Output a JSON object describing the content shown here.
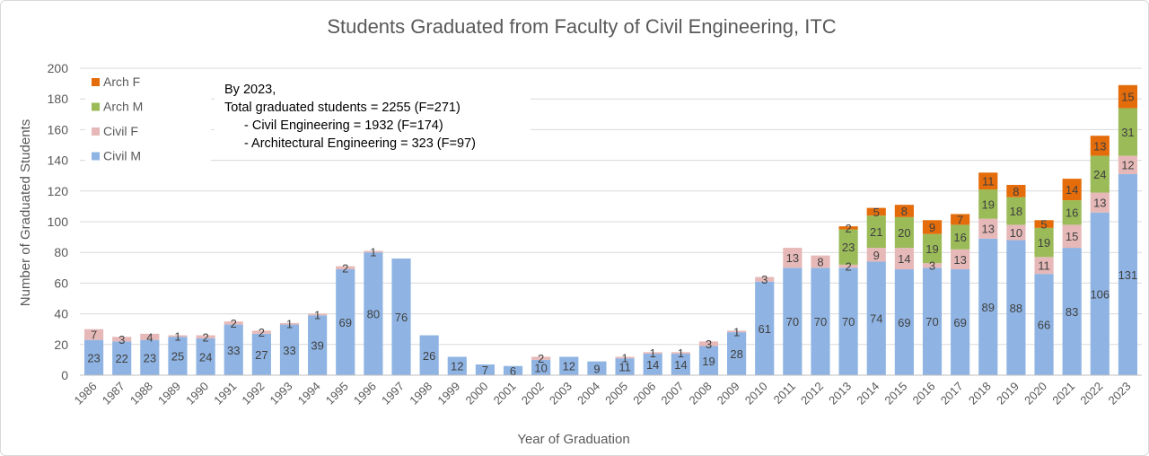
{
  "chart_data": {
    "type": "bar",
    "stacked": true,
    "title": "Students Graduated from Faculty of Civil Engineering, ITC",
    "xlabel": "Year of Graduation",
    "ylabel": "Number of Graduated Students",
    "ylim": [
      0,
      200
    ],
    "yticks": [
      0,
      20,
      40,
      60,
      80,
      100,
      120,
      140,
      160,
      180,
      200
    ],
    "grid": true,
    "legend_position": "top-left",
    "categories": [
      "1986",
      "1987",
      "1988",
      "1989",
      "1990",
      "1991",
      "1992",
      "1993",
      "1994",
      "1995",
      "1996",
      "1997",
      "1998",
      "1999",
      "2000",
      "2001",
      "2002",
      "2003",
      "2004",
      "2005",
      "2006",
      "2007",
      "2008",
      "2009",
      "2010",
      "2011",
      "2012",
      "2013",
      "2014",
      "2015",
      "2016",
      "2017",
      "2018",
      "2019",
      "2020",
      "2021",
      "2022",
      "2023"
    ],
    "series": [
      {
        "name": "Civil M",
        "color": "#8fb4e3",
        "values": [
          23,
          22,
          23,
          25,
          24,
          33,
          27,
          33,
          39,
          69,
          80,
          76,
          26,
          12,
          7,
          6,
          10,
          12,
          9,
          11,
          14,
          14,
          19,
          28,
          61,
          70,
          70,
          70,
          74,
          69,
          70,
          69,
          89,
          88,
          66,
          83,
          106,
          131
        ],
        "labels": [
          "23",
          "22",
          "23",
          "25",
          "24",
          "33",
          "27",
          "33",
          "39",
          "69",
          "80",
          "76",
          "26",
          "12",
          "7",
          "6",
          "10",
          "12",
          "9",
          "11",
          "14",
          "14",
          "19",
          "28",
          "61",
          "70",
          "70",
          "70",
          "74",
          "69",
          "70",
          "69",
          "89",
          "88",
          "66",
          "83",
          "106",
          "131"
        ]
      },
      {
        "name": "Civil F",
        "color": "#e6b9b8",
        "values": [
          7,
          3,
          4,
          1,
          2,
          2,
          2,
          1,
          1,
          2,
          1,
          0,
          0,
          0,
          0,
          0,
          2,
          0,
          0,
          1,
          1,
          1,
          3,
          1,
          3,
          13,
          8,
          2,
          9,
          14,
          3,
          13,
          13,
          10,
          11,
          15,
          13,
          12
        ],
        "labels": [
          "7",
          "3",
          "4",
          "1",
          "2",
          "2",
          "2",
          "1",
          "1",
          "2",
          "1",
          "",
          "",
          "",
          "",
          "",
          "2",
          "",
          "",
          "1",
          "1",
          "1",
          "3",
          "1",
          "3",
          "13",
          "8",
          "2",
          "9",
          "14",
          "3",
          "13",
          "13",
          "10",
          "11",
          "15",
          "13",
          "12"
        ]
      },
      {
        "name": "Arch M",
        "color": "#9bbb59",
        "values": [
          0,
          0,
          0,
          0,
          0,
          0,
          0,
          0,
          0,
          0,
          0,
          0,
          0,
          0,
          0,
          0,
          0,
          0,
          0,
          0,
          0,
          0,
          0,
          0,
          0,
          0,
          0,
          23,
          21,
          20,
          19,
          16,
          19,
          18,
          19,
          16,
          24,
          31
        ],
        "labels": [
          "",
          "",
          "",
          "",
          "",
          "",
          "",
          "",
          "",
          "",
          "",
          "",
          "",
          "",
          "",
          "",
          "",
          "",
          "",
          "",
          "",
          "",
          "",
          "",
          "",
          "",
          "",
          "23",
          "21",
          "20",
          "19",
          "16",
          "19",
          "18",
          "19",
          "16",
          "24",
          "31"
        ]
      },
      {
        "name": "Arch F",
        "color": "#e46c0a",
        "values": [
          0,
          0,
          0,
          0,
          0,
          0,
          0,
          0,
          0,
          0,
          0,
          0,
          0,
          0,
          0,
          0,
          0,
          0,
          0,
          0,
          0,
          0,
          0,
          0,
          0,
          0,
          0,
          2,
          5,
          8,
          9,
          7,
          11,
          8,
          5,
          14,
          13,
          15
        ],
        "labels": [
          "",
          "",
          "",
          "",
          "",
          "",
          "",
          "",
          "",
          "",
          "",
          "",
          "",
          "",
          "",
          "",
          "",
          "",
          "",
          "",
          "",
          "",
          "",
          "",
          "",
          "",
          "",
          "2",
          "5",
          "8",
          "9",
          "7",
          "11",
          "8",
          "5",
          "14",
          "13",
          "15"
        ]
      }
    ],
    "annotation": [
      "By 2023,",
      "Total graduated students = 2255 (F=271)",
      "- Civil Engineering = 1932 (F=174)",
      "- Architectural Engineering = 323 (F=97)"
    ]
  }
}
